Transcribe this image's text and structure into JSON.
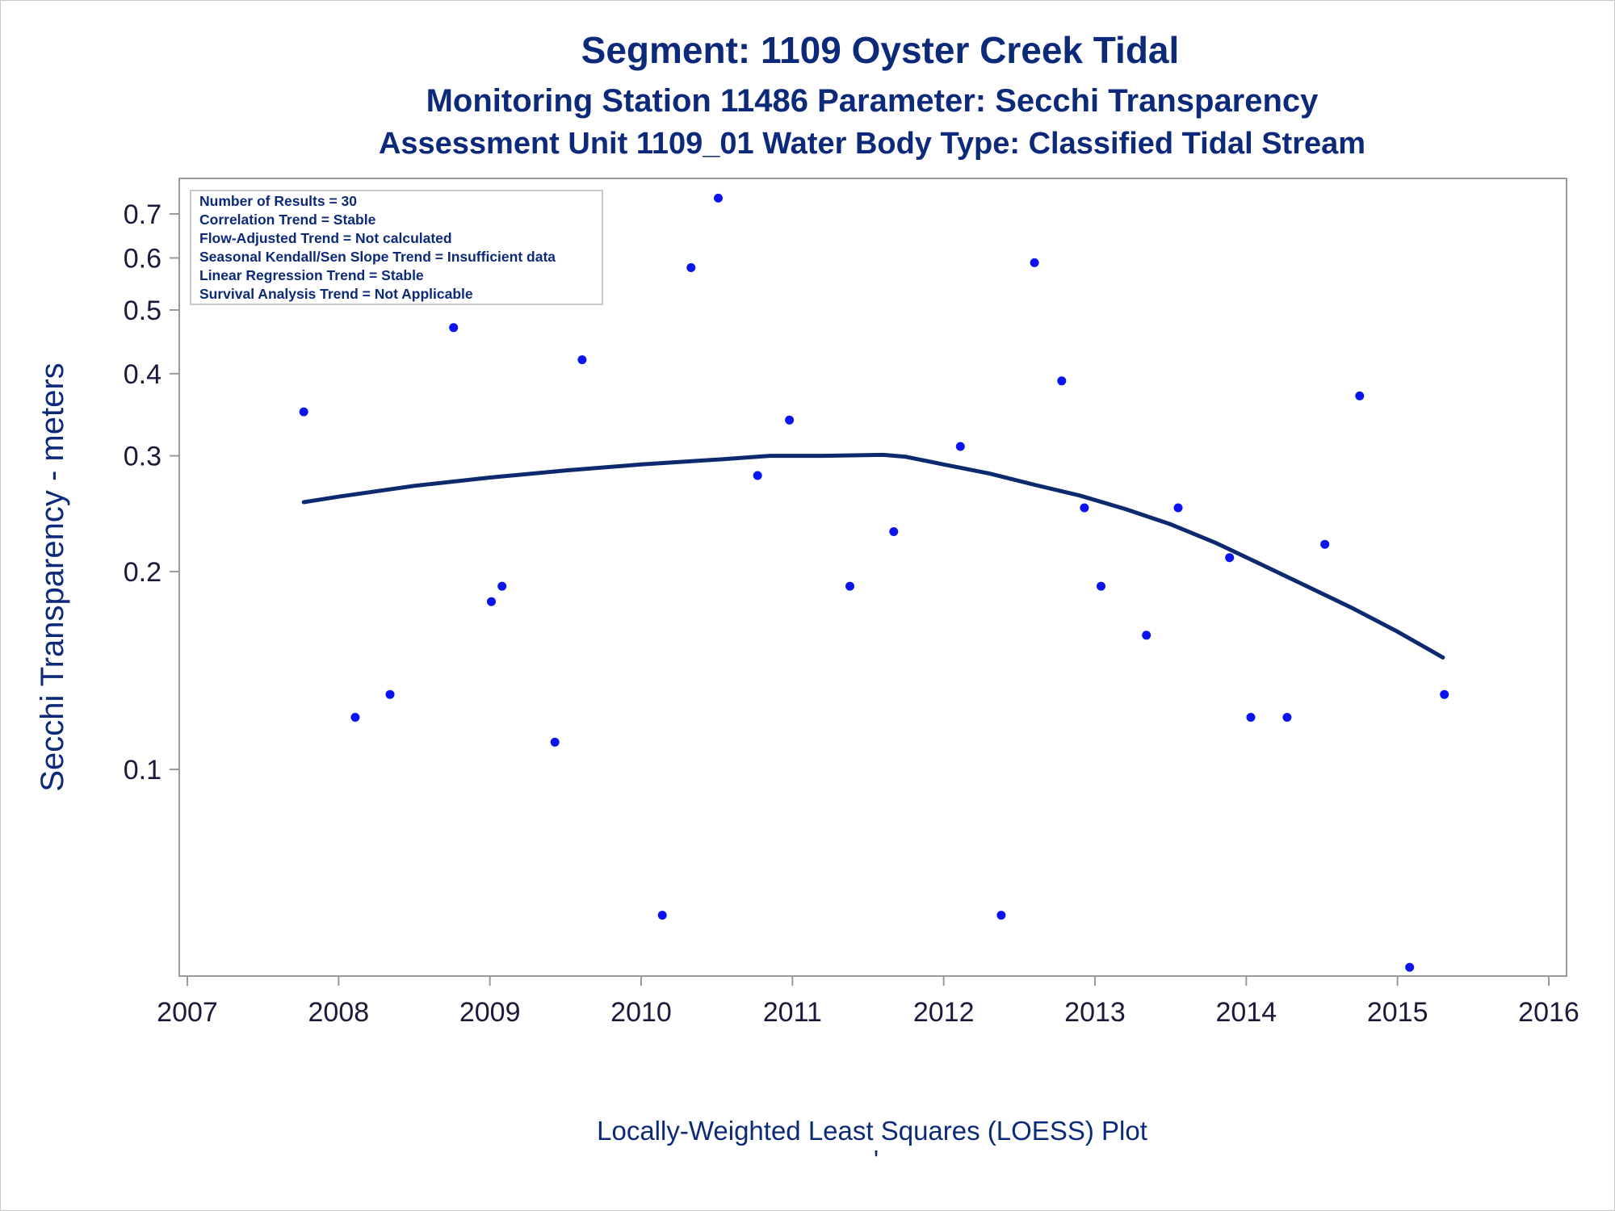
{
  "chart_data": {
    "type": "scatter",
    "title": "Segment: 1109  Oyster Creek Tidal",
    "subtitle": "Monitoring Station 11486 Parameter: Secchi Transparency",
    "subtitle2": "Assessment Unit 1109_01   Water Body Type: Classified Tidal Stream",
    "ylabel": "Secchi Transparency - meters",
    "footnote": "Locally-Weighted Least Squares (LOESS) Plot",
    "footnote_mark": "'",
    "yscale": "log",
    "ylim": [
      0.045,
      0.75
    ],
    "yticks": [
      0.1,
      0.2,
      0.3,
      0.4,
      0.5,
      0.6,
      0.7
    ],
    "ytick_labels": [
      "0.1",
      "0.2",
      "0.3",
      "0.4",
      "0.5",
      "0.6",
      "0.7"
    ],
    "xlim": [
      2007.0,
      2016.0
    ],
    "xticks": [
      2007,
      2008,
      2009,
      2010,
      2011,
      2012,
      2013,
      2014,
      2015,
      2016
    ],
    "xtick_labels": [
      "2007",
      "2008",
      "2009",
      "2010",
      "2011",
      "2012",
      "2013",
      "2014",
      "2015",
      "2016"
    ],
    "stats_box": [
      "Number of Results = 30",
      "Correlation Trend = Stable",
      "Flow-Adjusted Trend = Not calculated",
      "Seasonal Kendall/Sen Slope Trend = Insufficient data",
      "Linear Regression Trend = Stable",
      "Survival Analysis Trend = Not Applicable"
    ],
    "points": [
      {
        "x": 2007.77,
        "y": 0.35
      },
      {
        "x": 2008.11,
        "y": 0.12
      },
      {
        "x": 2008.34,
        "y": 0.13
      },
      {
        "x": 2008.76,
        "y": 0.47
      },
      {
        "x": 2009.01,
        "y": 0.18
      },
      {
        "x": 2009.08,
        "y": 0.19
      },
      {
        "x": 2009.43,
        "y": 0.11
      },
      {
        "x": 2009.61,
        "y": 0.42
      },
      {
        "x": 2010.14,
        "y": 0.06
      },
      {
        "x": 2010.33,
        "y": 0.58
      },
      {
        "x": 2010.51,
        "y": 0.74
      },
      {
        "x": 2010.77,
        "y": 0.28
      },
      {
        "x": 2010.98,
        "y": 0.34
      },
      {
        "x": 2011.38,
        "y": 0.19
      },
      {
        "x": 2011.67,
        "y": 0.23
      },
      {
        "x": 2012.11,
        "y": 0.31
      },
      {
        "x": 2012.38,
        "y": 0.06
      },
      {
        "x": 2012.6,
        "y": 0.59
      },
      {
        "x": 2012.78,
        "y": 0.39
      },
      {
        "x": 2012.93,
        "y": 0.25
      },
      {
        "x": 2013.04,
        "y": 0.19
      },
      {
        "x": 2013.34,
        "y": 0.16
      },
      {
        "x": 2013.55,
        "y": 0.25
      },
      {
        "x": 2013.89,
        "y": 0.21
      },
      {
        "x": 2014.03,
        "y": 0.12
      },
      {
        "x": 2014.27,
        "y": 0.12
      },
      {
        "x": 2014.52,
        "y": 0.22
      },
      {
        "x": 2014.75,
        "y": 0.37
      },
      {
        "x": 2015.08,
        "y": 0.05
      },
      {
        "x": 2015.31,
        "y": 0.13
      }
    ],
    "loess": [
      {
        "x": 2007.77,
        "y": 0.255
      },
      {
        "x": 2008.0,
        "y": 0.26
      },
      {
        "x": 2008.5,
        "y": 0.27
      },
      {
        "x": 2009.0,
        "y": 0.278
      },
      {
        "x": 2009.5,
        "y": 0.285
      },
      {
        "x": 2010.0,
        "y": 0.291
      },
      {
        "x": 2010.5,
        "y": 0.296
      },
      {
        "x": 2010.85,
        "y": 0.3
      },
      {
        "x": 2011.2,
        "y": 0.3
      },
      {
        "x": 2011.6,
        "y": 0.301
      },
      {
        "x": 2011.75,
        "y": 0.299
      },
      {
        "x": 2012.0,
        "y": 0.291
      },
      {
        "x": 2012.3,
        "y": 0.282
      },
      {
        "x": 2012.6,
        "y": 0.271
      },
      {
        "x": 2012.9,
        "y": 0.261
      },
      {
        "x": 2013.2,
        "y": 0.249
      },
      {
        "x": 2013.5,
        "y": 0.236
      },
      {
        "x": 2013.8,
        "y": 0.221
      },
      {
        "x": 2014.1,
        "y": 0.205
      },
      {
        "x": 2014.4,
        "y": 0.19
      },
      {
        "x": 2014.7,
        "y": 0.176
      },
      {
        "x": 2015.0,
        "y": 0.162
      },
      {
        "x": 2015.3,
        "y": 0.148
      }
    ],
    "colors": {
      "points": "#0a14ee",
      "loess": "#0d2a6e",
      "text": "#0d2a7a",
      "axis": "#9a9a9a"
    },
    "grid": false
  }
}
